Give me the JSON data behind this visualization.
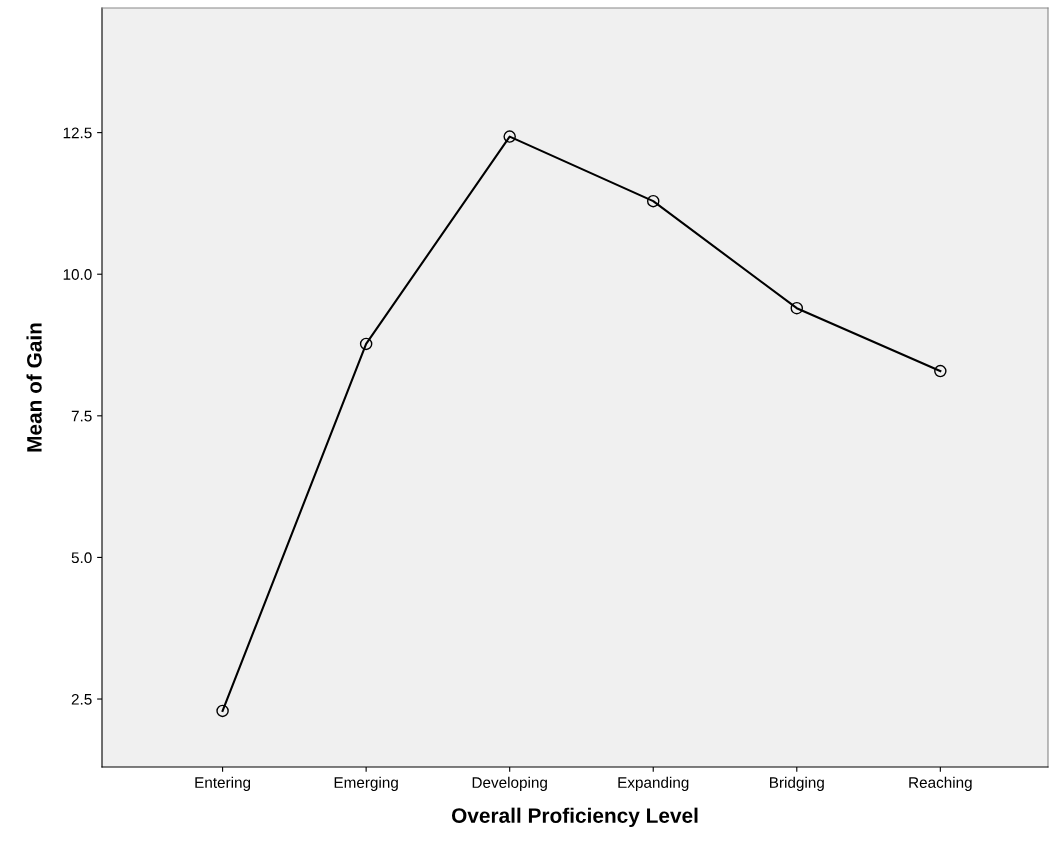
{
  "chart_data": {
    "type": "line",
    "xlabel": "Overall Proficiency Level",
    "ylabel": "Mean of Gain",
    "categories": [
      "Entering",
      "Emerging",
      "Developing",
      "Expanding",
      "Bridging",
      "Reaching"
    ],
    "series": [
      {
        "color": "#000000",
        "values": [
          2.29,
          8.77,
          12.43,
          11.29,
          9.4,
          8.29
        ]
      }
    ],
    "ylim": [
      1.3,
      14.7
    ],
    "yticks": [
      {
        "value": 2.5,
        "label": "2.5"
      },
      {
        "value": 5,
        "label": "5.0"
      },
      {
        "value": 7.5,
        "label": "7.5"
      },
      {
        "value": 10,
        "label": "10.0"
      },
      {
        "value": 12.5,
        "label": "12.5"
      }
    ],
    "marker": "circle",
    "line_style": "solid",
    "grid": false,
    "legend": false
  }
}
